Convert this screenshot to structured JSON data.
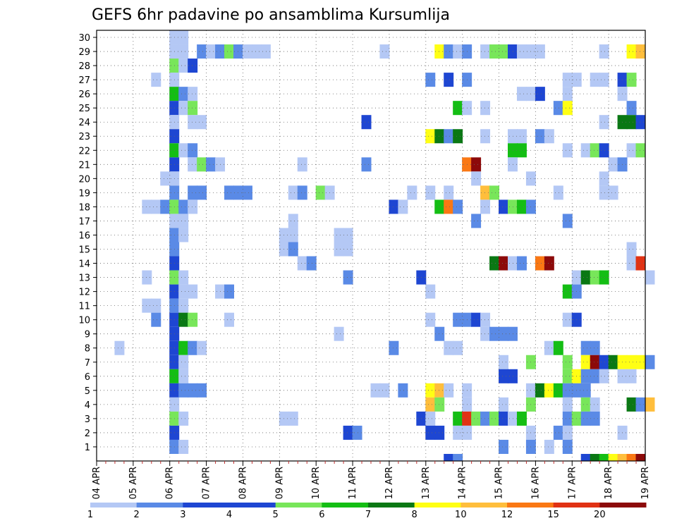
{
  "chart_data": {
    "type": "heatmap",
    "title": "GEFS 6hr padavine po ansamblima Kursumlija",
    "xlabel": "",
    "ylabel": "",
    "x_tick_labels": [
      "04 APR",
      "05 APR",
      "06 APR",
      "07 APR",
      "08 APR",
      "09 APR",
      "10 APR",
      "11 APR",
      "12 APR",
      "13 APR",
      "14 APR",
      "15 APR",
      "16 APR",
      "17 APR",
      "18 APR",
      "19 APR"
    ],
    "x_step_hours": 6,
    "x_steps": 60,
    "y_tick_labels": [
      "1",
      "2",
      "3",
      "4",
      "5",
      "6",
      "7",
      "8",
      "9",
      "10",
      "11",
      "12",
      "13",
      "14",
      "15",
      "16",
      "17",
      "18",
      "19",
      "20",
      "21",
      "22",
      "23",
      "24",
      "25",
      "26",
      "27",
      "28",
      "29",
      "30"
    ],
    "y_members": 31,
    "grid": true,
    "legend": "bottom colorbar",
    "colorbar": {
      "labels": [
        "1",
        "2",
        "3",
        "4",
        "5",
        "6",
        "7",
        "8",
        "10",
        "12",
        "15",
        "20"
      ],
      "colors": [
        "#b4c8f5",
        "#5a8ae6",
        "#1e46d2",
        "#1e46d2",
        "#78e65a",
        "#14be14",
        "#0a7814",
        "#ffff14",
        "#ffbe3c",
        "#fa7814",
        "#e13214",
        "#8c0a0a"
      ]
    },
    "cells": [
      [
        8,
        30,
        0
      ],
      [
        9,
        30,
        0
      ],
      [
        8,
        29,
        0
      ],
      [
        9,
        29,
        0
      ],
      [
        11,
        29,
        1
      ],
      [
        12,
        29,
        0
      ],
      [
        13,
        29,
        1
      ],
      [
        14,
        29,
        4
      ],
      [
        15,
        29,
        1
      ],
      [
        16,
        29,
        0
      ],
      [
        17,
        29,
        0
      ],
      [
        18,
        29,
        0
      ],
      [
        31,
        29,
        0
      ],
      [
        37,
        29,
        7
      ],
      [
        38,
        29,
        1
      ],
      [
        39,
        29,
        0
      ],
      [
        40,
        29,
        1
      ],
      [
        42,
        29,
        0
      ],
      [
        43,
        29,
        4
      ],
      [
        44,
        29,
        4
      ],
      [
        45,
        29,
        2
      ],
      [
        46,
        29,
        0
      ],
      [
        47,
        29,
        0
      ],
      [
        48,
        29,
        0
      ],
      [
        55,
        29,
        0
      ],
      [
        58,
        29,
        7
      ],
      [
        59,
        29,
        8
      ],
      [
        8,
        28,
        4
      ],
      [
        9,
        28,
        0
      ],
      [
        10,
        28,
        2
      ],
      [
        6,
        27,
        0
      ],
      [
        8,
        27,
        0
      ],
      [
        36,
        27,
        1
      ],
      [
        38,
        27,
        2
      ],
      [
        40,
        27,
        1
      ],
      [
        51,
        27,
        0
      ],
      [
        52,
        27,
        0
      ],
      [
        54,
        27,
        0
      ],
      [
        55,
        27,
        0
      ],
      [
        57,
        27,
        2
      ],
      [
        58,
        27,
        4
      ],
      [
        8,
        26,
        5
      ],
      [
        9,
        26,
        1
      ],
      [
        10,
        26,
        0
      ],
      [
        46,
        26,
        0
      ],
      [
        47,
        26,
        0
      ],
      [
        48,
        26,
        2
      ],
      [
        51,
        26,
        0
      ],
      [
        57,
        26,
        0
      ],
      [
        8,
        25,
        2
      ],
      [
        9,
        25,
        0
      ],
      [
        10,
        25,
        4
      ],
      [
        39,
        25,
        5
      ],
      [
        40,
        25,
        0
      ],
      [
        42,
        25,
        0
      ],
      [
        50,
        25,
        1
      ],
      [
        51,
        25,
        7
      ],
      [
        58,
        25,
        1
      ],
      [
        8,
        24,
        0
      ],
      [
        10,
        24,
        0
      ],
      [
        11,
        24,
        0
      ],
      [
        29,
        24,
        2
      ],
      [
        55,
        24,
        0
      ],
      [
        57,
        24,
        6
      ],
      [
        58,
        24,
        6
      ],
      [
        59,
        24,
        2
      ],
      [
        8,
        23,
        2
      ],
      [
        36,
        23,
        7
      ],
      [
        37,
        23,
        6
      ],
      [
        38,
        23,
        1
      ],
      [
        39,
        23,
        6
      ],
      [
        42,
        23,
        0
      ],
      [
        45,
        23,
        0
      ],
      [
        46,
        23,
        0
      ],
      [
        48,
        23,
        1
      ],
      [
        49,
        23,
        0
      ],
      [
        8,
        22,
        5
      ],
      [
        9,
        22,
        0
      ],
      [
        10,
        22,
        1
      ],
      [
        45,
        22,
        5
      ],
      [
        46,
        22,
        5
      ],
      [
        51,
        22,
        0
      ],
      [
        53,
        22,
        0
      ],
      [
        54,
        22,
        4
      ],
      [
        55,
        22,
        2
      ],
      [
        58,
        22,
        0
      ],
      [
        59,
        22,
        4
      ],
      [
        8,
        21,
        2
      ],
      [
        10,
        21,
        0
      ],
      [
        11,
        21,
        4
      ],
      [
        12,
        21,
        1
      ],
      [
        13,
        21,
        0
      ],
      [
        22,
        21,
        0
      ],
      [
        29,
        21,
        1
      ],
      [
        40,
        21,
        9
      ],
      [
        41,
        21,
        11
      ],
      [
        45,
        21,
        0
      ],
      [
        56,
        21,
        0
      ],
      [
        57,
        21,
        1
      ],
      [
        7,
        20,
        0
      ],
      [
        8,
        20,
        0
      ],
      [
        41,
        20,
        0
      ],
      [
        47,
        20,
        0
      ],
      [
        55,
        20,
        0
      ],
      [
        8,
        19,
        1
      ],
      [
        10,
        19,
        1
      ],
      [
        11,
        19,
        1
      ],
      [
        14,
        19,
        1
      ],
      [
        15,
        19,
        1
      ],
      [
        16,
        19,
        1
      ],
      [
        21,
        19,
        0
      ],
      [
        22,
        19,
        1
      ],
      [
        24,
        19,
        4
      ],
      [
        25,
        19,
        0
      ],
      [
        34,
        19,
        0
      ],
      [
        36,
        19,
        0
      ],
      [
        38,
        19,
        0
      ],
      [
        42,
        19,
        8
      ],
      [
        43,
        19,
        4
      ],
      [
        50,
        19,
        0
      ],
      [
        55,
        19,
        0
      ],
      [
        56,
        19,
        0
      ],
      [
        5,
        18,
        0
      ],
      [
        6,
        18,
        0
      ],
      [
        7,
        18,
        1
      ],
      [
        8,
        18,
        4
      ],
      [
        9,
        18,
        1
      ],
      [
        10,
        18,
        0
      ],
      [
        32,
        18,
        2
      ],
      [
        33,
        18,
        0
      ],
      [
        37,
        18,
        5
      ],
      [
        38,
        18,
        9
      ],
      [
        39,
        18,
        1
      ],
      [
        42,
        18,
        0
      ],
      [
        44,
        18,
        2
      ],
      [
        45,
        18,
        4
      ],
      [
        46,
        18,
        5
      ],
      [
        47,
        18,
        1
      ],
      [
        8,
        17,
        0
      ],
      [
        9,
        17,
        0
      ],
      [
        21,
        17,
        0
      ],
      [
        41,
        17,
        1
      ],
      [
        51,
        17,
        1
      ],
      [
        8,
        16,
        1
      ],
      [
        9,
        16,
        0
      ],
      [
        20,
        16,
        0
      ],
      [
        21,
        16,
        0
      ],
      [
        26,
        16,
        0
      ],
      [
        27,
        16,
        0
      ],
      [
        8,
        15,
        1
      ],
      [
        20,
        15,
        0
      ],
      [
        21,
        15,
        1
      ],
      [
        26,
        15,
        0
      ],
      [
        27,
        15,
        0
      ],
      [
        58,
        15,
        0
      ],
      [
        8,
        14,
        2
      ],
      [
        22,
        14,
        0
      ],
      [
        23,
        14,
        1
      ],
      [
        43,
        14,
        6
      ],
      [
        44,
        14,
        11
      ],
      [
        45,
        14,
        0
      ],
      [
        46,
        14,
        1
      ],
      [
        48,
        14,
        9
      ],
      [
        49,
        14,
        11
      ],
      [
        58,
        14,
        0
      ],
      [
        59,
        14,
        10
      ],
      [
        8,
        13,
        4
      ],
      [
        9,
        13,
        0
      ],
      [
        5,
        13,
        0
      ],
      [
        27,
        13,
        1
      ],
      [
        35,
        13,
        2
      ],
      [
        52,
        13,
        0
      ],
      [
        53,
        13,
        6
      ],
      [
        54,
        13,
        4
      ],
      [
        55,
        13,
        5
      ],
      [
        60,
        13,
        0
      ],
      [
        8,
        12,
        2
      ],
      [
        9,
        12,
        0
      ],
      [
        10,
        12,
        0
      ],
      [
        13,
        12,
        0
      ],
      [
        14,
        12,
        1
      ],
      [
        36,
        12,
        0
      ],
      [
        51,
        12,
        5
      ],
      [
        52,
        12,
        1
      ],
      [
        5,
        11,
        0
      ],
      [
        6,
        11,
        0
      ],
      [
        8,
        11,
        1
      ],
      [
        9,
        11,
        0
      ],
      [
        6,
        10,
        1
      ],
      [
        8,
        10,
        2
      ],
      [
        9,
        10,
        6
      ],
      [
        10,
        10,
        4
      ],
      [
        14,
        10,
        0
      ],
      [
        36,
        10,
        0
      ],
      [
        39,
        10,
        1
      ],
      [
        40,
        10,
        1
      ],
      [
        41,
        10,
        2
      ],
      [
        42,
        10,
        0
      ],
      [
        51,
        10,
        0
      ],
      [
        52,
        10,
        2
      ],
      [
        8,
        9,
        2
      ],
      [
        26,
        9,
        0
      ],
      [
        37,
        9,
        1
      ],
      [
        42,
        9,
        0
      ],
      [
        43,
        9,
        1
      ],
      [
        44,
        9,
        1
      ],
      [
        45,
        9,
        1
      ],
      [
        2,
        8,
        0
      ],
      [
        8,
        8,
        2
      ],
      [
        9,
        8,
        5
      ],
      [
        10,
        8,
        1
      ],
      [
        11,
        8,
        0
      ],
      [
        32,
        8,
        1
      ],
      [
        38,
        8,
        0
      ],
      [
        39,
        8,
        0
      ],
      [
        49,
        8,
        0
      ],
      [
        50,
        8,
        5
      ],
      [
        53,
        8,
        1
      ],
      [
        54,
        8,
        1
      ],
      [
        8,
        7,
        2
      ],
      [
        9,
        7,
        0
      ],
      [
        44,
        7,
        0
      ],
      [
        47,
        7,
        4
      ],
      [
        51,
        7,
        4
      ],
      [
        53,
        7,
        7
      ],
      [
        54,
        7,
        11
      ],
      [
        55,
        7,
        2
      ],
      [
        56,
        7,
        6
      ],
      [
        57,
        7,
        7
      ],
      [
        58,
        7,
        7
      ],
      [
        59,
        7,
        7
      ],
      [
        60,
        7,
        1
      ],
      [
        8,
        6,
        5
      ],
      [
        9,
        6,
        0
      ],
      [
        44,
        6,
        2
      ],
      [
        45,
        6,
        2
      ],
      [
        51,
        6,
        4
      ],
      [
        52,
        6,
        7
      ],
      [
        53,
        6,
        1
      ],
      [
        54,
        6,
        1
      ],
      [
        55,
        6,
        0
      ],
      [
        57,
        6,
        0
      ],
      [
        58,
        6,
        0
      ],
      [
        8,
        5,
        2
      ],
      [
        9,
        5,
        1
      ],
      [
        10,
        5,
        1
      ],
      [
        11,
        5,
        1
      ],
      [
        30,
        5,
        0
      ],
      [
        31,
        5,
        0
      ],
      [
        33,
        5,
        1
      ],
      [
        36,
        5,
        7
      ],
      [
        37,
        5,
        8
      ],
      [
        38,
        5,
        0
      ],
      [
        40,
        5,
        0
      ],
      [
        47,
        5,
        0
      ],
      [
        48,
        5,
        6
      ],
      [
        49,
        5,
        7
      ],
      [
        50,
        5,
        5
      ],
      [
        51,
        5,
        1
      ],
      [
        52,
        5,
        1
      ],
      [
        53,
        5,
        1
      ],
      [
        8,
        4,
        0
      ],
      [
        36,
        4,
        8
      ],
      [
        37,
        4,
        4
      ],
      [
        40,
        4,
        0
      ],
      [
        44,
        4,
        0
      ],
      [
        47,
        4,
        4
      ],
      [
        51,
        4,
        0
      ],
      [
        53,
        4,
        4
      ],
      [
        54,
        4,
        0
      ],
      [
        58,
        4,
        6
      ],
      [
        59,
        4,
        1
      ],
      [
        60,
        4,
        8
      ],
      [
        8,
        3,
        4
      ],
      [
        9,
        3,
        0
      ],
      [
        20,
        3,
        0
      ],
      [
        21,
        3,
        0
      ],
      [
        35,
        3,
        2
      ],
      [
        36,
        3,
        0
      ],
      [
        39,
        3,
        5
      ],
      [
        40,
        3,
        10
      ],
      [
        41,
        3,
        4
      ],
      [
        42,
        3,
        1
      ],
      [
        43,
        3,
        4
      ],
      [
        44,
        3,
        2
      ],
      [
        45,
        3,
        0
      ],
      [
        46,
        3,
        5
      ],
      [
        51,
        3,
        1
      ],
      [
        52,
        3,
        4
      ],
      [
        53,
        3,
        1
      ],
      [
        54,
        3,
        1
      ],
      [
        8,
        2,
        2
      ],
      [
        27,
        2,
        2
      ],
      [
        28,
        2,
        1
      ],
      [
        36,
        2,
        2
      ],
      [
        37,
        2,
        2
      ],
      [
        39,
        2,
        0
      ],
      [
        40,
        2,
        0
      ],
      [
        47,
        2,
        0
      ],
      [
        50,
        2,
        1
      ],
      [
        51,
        2,
        0
      ],
      [
        57,
        2,
        0
      ],
      [
        8,
        1,
        1
      ],
      [
        9,
        1,
        0
      ],
      [
        44,
        1,
        1
      ],
      [
        47,
        1,
        1
      ],
      [
        49,
        1,
        0
      ],
      [
        51,
        1,
        1
      ],
      [
        38,
        0,
        2
      ],
      [
        39,
        0,
        1
      ],
      [
        53,
        0,
        2
      ],
      [
        54,
        0,
        6
      ],
      [
        55,
        0,
        5
      ],
      [
        56,
        0,
        7
      ],
      [
        57,
        0,
        8
      ],
      [
        58,
        0,
        9
      ],
      [
        59,
        0,
        11
      ]
    ]
  }
}
